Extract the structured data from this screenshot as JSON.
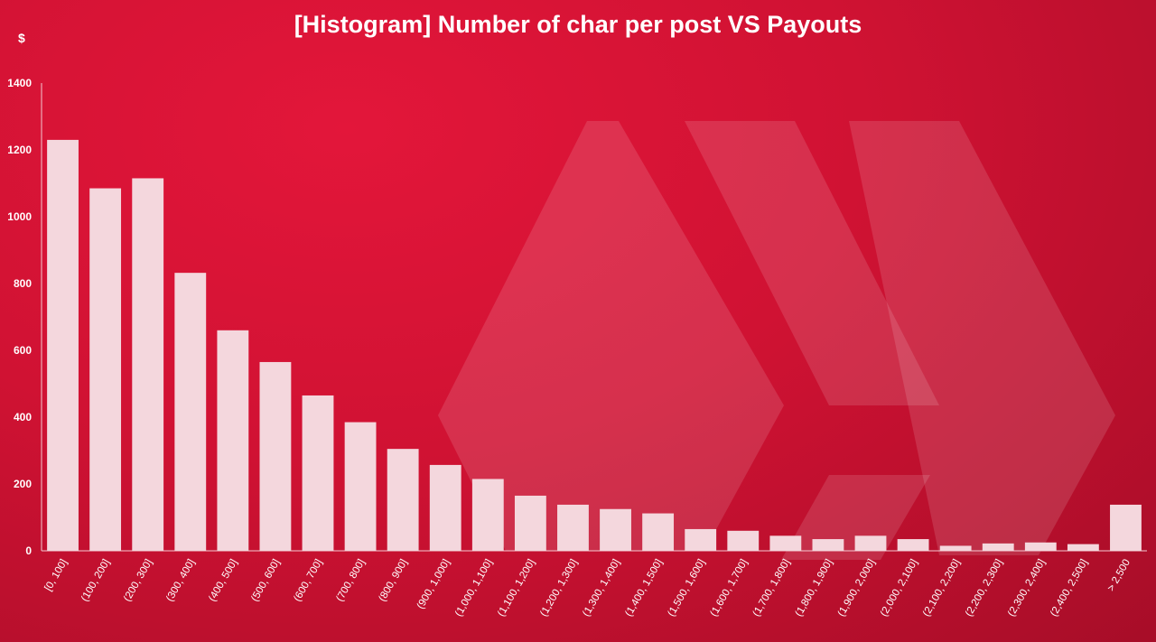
{
  "chart_data": {
    "type": "bar",
    "title": "[Histogram] Number of char per post VS Payouts",
    "ylabel": "$",
    "xlabel": "",
    "ylim": [
      0,
      1400
    ],
    "yticks": [
      0,
      200,
      400,
      600,
      800,
      1000,
      1200,
      1400
    ],
    "grid": false,
    "categories": [
      "[0, 100]",
      "(100, 200]",
      "(200, 300]",
      "(300, 400]",
      "(400, 500]",
      "(500, 600]",
      "(600, 700]",
      "(700, 800]",
      "(800, 900]",
      "(900, 1,000]",
      "(1,000, 1,100]",
      "(1,100, 1,200]",
      "(1,200, 1,300]",
      "(1,300, 1,400]",
      "(1,400, 1,500]",
      "(1,500, 1,600]",
      "(1,600, 1,700]",
      "(1,700, 1,800]",
      "(1,800, 1,900]",
      "(1,900, 2,000]",
      "(2,000, 2,100]",
      "(2,100, 2,200]",
      "(2,200, 2,300]",
      "(2,300, 2,400]",
      "(2,400, 2,500]",
      "> 2,500"
    ],
    "values": [
      1230,
      1085,
      1115,
      832,
      660,
      565,
      465,
      385,
      305,
      257,
      215,
      165,
      138,
      125,
      112,
      65,
      60,
      45,
      35,
      45,
      35,
      15,
      22,
      25,
      20,
      138
    ],
    "bar_color": "#f4d7dd",
    "background_color": "#d01233"
  }
}
